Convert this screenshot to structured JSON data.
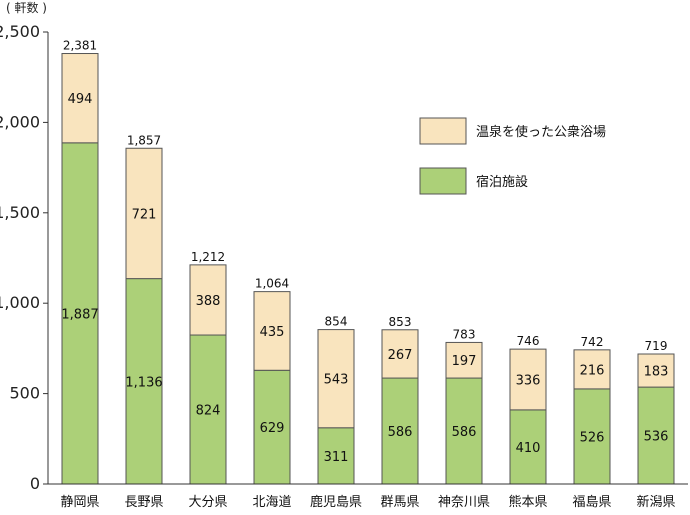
{
  "chart_data": {
    "type": "bar",
    "stacked": true,
    "unit_label": "( 軒数 )",
    "title": "",
    "xlabel": "",
    "ylabel": "",
    "ylim": [
      0,
      2500
    ],
    "yticks": [
      0,
      500,
      1000,
      1500,
      2000,
      2500
    ],
    "ytick_labels": [
      "0",
      "500",
      "1,000",
      "1,500",
      "2,000",
      "2,500"
    ],
    "grid": false,
    "legend_position": "right",
    "categories": [
      "静岡県",
      "長野県",
      "大分県",
      "北海道",
      "鹿児島県",
      "群馬県",
      "神奈川県",
      "熊本県",
      "福島県",
      "新潟県"
    ],
    "series": [
      {
        "name": "宿泊施設",
        "color": "#acd078",
        "values": [
          1887,
          1136,
          824,
          629,
          311,
          586,
          586,
          410,
          526,
          536
        ],
        "labels": [
          "1,887",
          "1,136",
          "824",
          "629",
          "311",
          "586",
          "586",
          "410",
          "526",
          "536"
        ]
      },
      {
        "name": "温泉を使った公衆浴場",
        "color": "#f9e4be",
        "values": [
          494,
          721,
          388,
          435,
          543,
          267,
          197,
          336,
          216,
          183
        ],
        "labels": [
          "494",
          "721",
          "388",
          "435",
          "543",
          "267",
          "197",
          "336",
          "216",
          "183"
        ]
      }
    ],
    "totals": [
      2381,
      1857,
      1212,
      1064,
      854,
      853,
      783,
      746,
      742,
      719
    ],
    "total_labels": [
      "2,381",
      "1,857",
      "1,212",
      "1,064",
      "854",
      "853",
      "783",
      "746",
      "742",
      "719"
    ],
    "legend_order": [
      "温泉を使った公衆浴場",
      "宿泊施設"
    ],
    "axis_color": "#333333",
    "bar_edge_color": "#555555"
  }
}
